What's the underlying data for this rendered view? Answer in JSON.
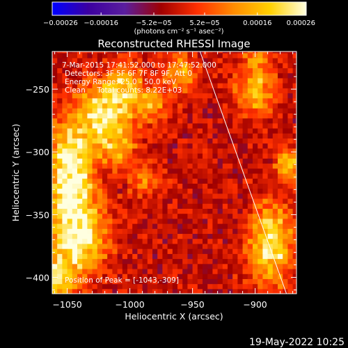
{
  "chart_data": {
    "type": "heatmap",
    "title": "Reconstructed RHESSI Image",
    "xlabel": "Heliocentric X (arcsec)",
    "ylabel": "Heliocentric Y (arcsec)",
    "xlim": [
      -1062,
      -867
    ],
    "ylim": [
      -413,
      -220
    ],
    "x_ticks": [
      -1050,
      -1000,
      -950,
      -900
    ],
    "x_tick_labels": [
      "−1050",
      "−1000",
      "−950",
      "−900"
    ],
    "y_ticks": [
      -250,
      -300,
      -350,
      -400
    ],
    "y_tick_labels": [
      "−250",
      "−300",
      "−350",
      "−400"
    ],
    "colorbar": {
      "min": -0.00026,
      "max": 0.00026,
      "ticks": [
        -0.00026,
        -0.00016,
        -5.2e-05,
        5.2e-05,
        0.00016,
        0.00026
      ],
      "tick_labels": [
        "−0.00026",
        "−0.00016",
        "−5.2e−05",
        "5.2e−05",
        "0.00016",
        "0.00026"
      ],
      "units_label": "(photons cm⁻² s⁻¹ asec⁻²)",
      "colors": [
        "#0000ff",
        "#3c00a0",
        "#5a1e9e",
        "#a00000",
        "#ff3000",
        "#ff8c00",
        "#ffd000",
        "#ffffe0"
      ]
    },
    "annotations": {
      "time_range": "7-Mar-2015 17:41:52.000 to 17:47:52.000",
      "detectors": "Detectors: 3F 5F 6F 7F 8F 9F, Att 0",
      "energy_range": "Energy Range: 25.0 - 50.0 keV",
      "clean_counts": "Clean     Total counts: 8.22E+03",
      "peak": "Position of Peak = [-1043,-309]"
    },
    "limb_line": [
      {
        "x": -944,
        "y": -220
      },
      {
        "x": -875,
        "y": -413
      }
    ],
    "hot_spots": [
      {
        "x": -1048,
        "y": -313,
        "sx": 12,
        "sy": 25,
        "amp": 0.00028
      },
      {
        "x": -1042,
        "y": -365,
        "sx": 16,
        "sy": 22,
        "amp": 0.00027
      },
      {
        "x": -1058,
        "y": -400,
        "sx": 10,
        "sy": 12,
        "amp": 0.00018
      },
      {
        "x": -1020,
        "y": -272,
        "sx": 15,
        "sy": 18,
        "amp": 0.00026
      },
      {
        "x": -1003,
        "y": -246,
        "sx": 10,
        "sy": 12,
        "amp": 0.00015
      },
      {
        "x": -983,
        "y": -263,
        "sx": 9,
        "sy": 9,
        "amp": 0.00013
      },
      {
        "x": -987,
        "y": -322,
        "sx": 9,
        "sy": 9,
        "amp": 0.00011
      },
      {
        "x": -1009,
        "y": -300,
        "sx": 8,
        "sy": 8,
        "amp": 0.00012
      },
      {
        "x": -960,
        "y": -237,
        "sx": 10,
        "sy": 11,
        "amp": 0.00015
      },
      {
        "x": -900,
        "y": -250,
        "sx": 11,
        "sy": 14,
        "amp": 0.00018
      },
      {
        "x": -873,
        "y": -310,
        "sx": 7,
        "sy": 9,
        "amp": 0.00019
      },
      {
        "x": -888,
        "y": -374,
        "sx": 12,
        "sy": 22,
        "amp": 0.00024
      },
      {
        "x": -898,
        "y": -224,
        "sx": 7,
        "sy": 6,
        "amp": 0.00012
      }
    ],
    "background_level": -1.2e-05
  },
  "footer": {
    "timestamp": "19-May-2022 10:25"
  }
}
